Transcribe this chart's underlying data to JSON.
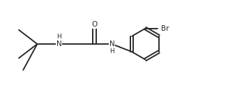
{
  "bg_color": "#ffffff",
  "bond_color": "#2a2a2a",
  "label_color": "#2a2a2a",
  "br_color": "#2a2a2a",
  "line_width": 1.4,
  "font_size": 7.5,
  "xlim": [
    0,
    10.5
  ],
  "ylim": [
    0.5,
    4.5
  ],
  "figsize": [
    3.27,
    1.26
  ],
  "dpi": 100
}
